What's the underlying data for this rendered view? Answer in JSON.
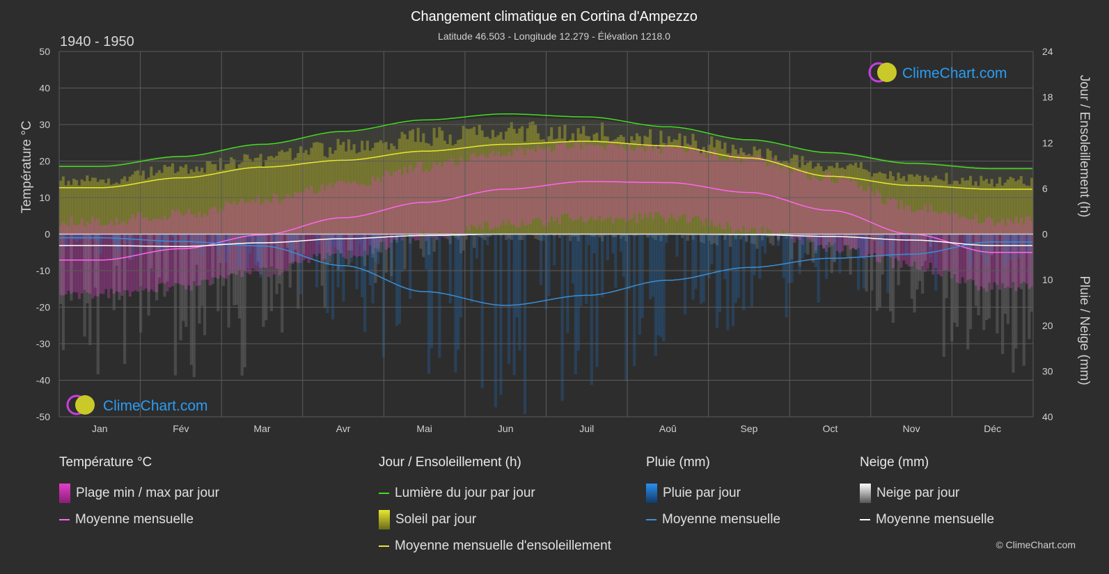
{
  "header": {
    "title": "Changement climatique en Cortina d'Ampezzo",
    "subtitle": "Latitude 46.503 - Longitude 12.279 - Élévation 1218.0",
    "period": "1940 - 1950"
  },
  "brand": {
    "name": "ClimeChart.com",
    "copyright": "© ClimeChart.com"
  },
  "colors": {
    "background": "#2d2d2d",
    "daylight": "#44dd22",
    "sunshine_fill": "#b5b52a",
    "sunshine_line": "#e8e830",
    "temp_range": "#e23fc8",
    "temp_line": "#ff66ee",
    "rain": "#1f78c8",
    "rain_line": "#3a8fd6",
    "snow": "#b0b0b0",
    "snow_line": "#ffffff"
  },
  "chart_data": {
    "type": "line",
    "title": "Changement climatique en Cortina d'Ampezzo",
    "categories": [
      "Jan",
      "Fév",
      "Mar",
      "Avr",
      "Mai",
      "Jun",
      "Juil",
      "Aoû",
      "Sep",
      "Oct",
      "Nov",
      "Déc"
    ],
    "y_left": {
      "label": "Température °C",
      "range": [
        -50,
        50
      ],
      "ticks": [
        50,
        40,
        30,
        20,
        10,
        0,
        -10,
        -20,
        -30,
        -40,
        -50
      ]
    },
    "y_right_top": {
      "label": "Jour / Ensoleillement (h)",
      "range": [
        0,
        24
      ],
      "ticks": [
        24,
        18,
        12,
        6,
        0
      ]
    },
    "y_right_bottom": {
      "label": "Pluie / Neige (mm)",
      "range": [
        0,
        40
      ],
      "ticks": [
        0,
        10,
        20,
        30,
        40
      ]
    },
    "grid": true,
    "series": [
      {
        "name": "Lumière du jour par jour",
        "axis": "hours",
        "values": [
          8.9,
          10.2,
          11.8,
          13.5,
          15.0,
          15.8,
          15.4,
          14.1,
          12.4,
          10.7,
          9.3,
          8.6
        ]
      },
      {
        "name": "Moyenne mensuelle d'ensoleillement",
        "axis": "hours",
        "values": [
          6.1,
          7.4,
          8.8,
          9.7,
          10.9,
          11.8,
          12.2,
          11.6,
          10.0,
          7.6,
          6.4,
          5.9
        ]
      },
      {
        "name": "Soleil par jour",
        "axis": "hours",
        "values": [
          7.4,
          9.0,
          10.3,
          12.0,
          13.5,
          14.2,
          14.1,
          13.0,
          11.6,
          9.6,
          7.9,
          7.3
        ]
      },
      {
        "name": "Moyenne mensuelle",
        "axis": "temperature",
        "kind": "temperature",
        "values": [
          -7.1,
          -4.0,
          -0.2,
          4.5,
          8.7,
          12.3,
          14.4,
          14.1,
          11.4,
          6.5,
          0.0,
          -5.0
        ]
      },
      {
        "name": "Plage min / max par jour",
        "axis": "temperature",
        "min": [
          -15,
          -13,
          -9,
          -4,
          1,
          4,
          6,
          6,
          3,
          -2,
          -7,
          -13
        ],
        "max": [
          2,
          4,
          8,
          12,
          17,
          21,
          23,
          22,
          19,
          14,
          6,
          2
        ]
      },
      {
        "name": "Moyenne mensuelle",
        "axis": "precip",
        "kind": "rain",
        "values": [
          0.8,
          1.6,
          2.6,
          6.9,
          12.6,
          15.6,
          13.4,
          10.1,
          7.3,
          5.3,
          4.4,
          1.7
        ]
      },
      {
        "name": "Moyenne mensuelle",
        "axis": "precip",
        "kind": "snow",
        "values": [
          2.5,
          2.7,
          1.9,
          1.0,
          0.3,
          0.0,
          0.0,
          0.0,
          0.1,
          0.5,
          1.3,
          2.5
        ]
      }
    ]
  },
  "legend": {
    "temperature": {
      "heading": "Température °C",
      "items": [
        "Plage min / max par jour",
        "Moyenne mensuelle"
      ]
    },
    "sun": {
      "heading": "Jour / Ensoleillement (h)",
      "items": [
        "Lumière du jour par jour",
        "Soleil par jour",
        "Moyenne mensuelle d'ensoleillement"
      ]
    },
    "rain": {
      "heading": "Pluie (mm)",
      "items": [
        "Pluie par jour",
        "Moyenne mensuelle"
      ]
    },
    "snow": {
      "heading": "Neige (mm)",
      "items": [
        "Neige par jour",
        "Moyenne mensuelle"
      ]
    }
  }
}
